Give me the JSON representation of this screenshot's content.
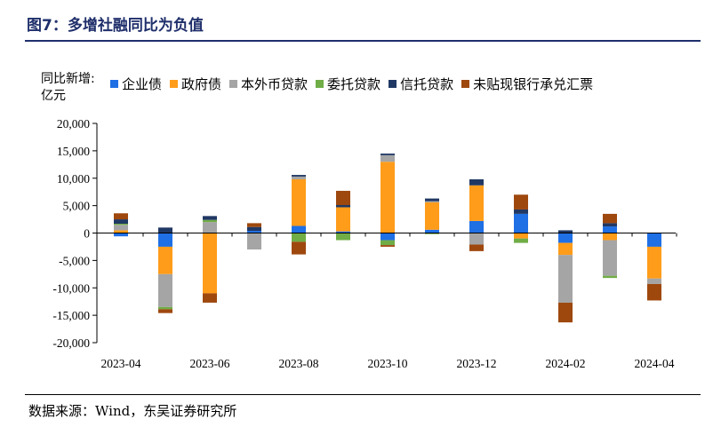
{
  "header": {
    "title": "图7：多增社融同比为负值",
    "source": "数据来源：Wind，东吴证券研究所"
  },
  "chart_data": {
    "type": "bar",
    "stacked": true,
    "ylabel": "同比新增:亿元",
    "ylim": [
      -20000,
      20000
    ],
    "yticks": [
      20000,
      15000,
      10000,
      5000,
      0,
      -5000,
      -10000,
      -15000,
      -20000
    ],
    "ytick_labels": [
      "20,000",
      "15,000",
      "10,000",
      "5,000",
      "0",
      "-5,000",
      "-10,000",
      "-15,000",
      "-20,000"
    ],
    "categories": [
      "2023-04",
      "2023-05",
      "2023-06",
      "2023-07",
      "2023-08",
      "2023-09",
      "2023-10",
      "2023-11",
      "2023-12",
      "2024-01",
      "2024-02",
      "2024-03",
      "2024-04"
    ],
    "xtick_labels": [
      "2023-04",
      "2023-06",
      "2023-08",
      "2023-10",
      "2023-12",
      "2024-02",
      "2024-04"
    ],
    "grid": false,
    "legend_position": "top",
    "series": [
      {
        "name": "企业债",
        "color": "#1f6fe5",
        "values": [
          -600,
          -2500,
          0,
          400,
          1300,
          300,
          -1300,
          600,
          2200,
          3500,
          -1800,
          1200,
          -2500
        ]
      },
      {
        "name": "政府债",
        "color": "#ff9c1a",
        "values": [
          500,
          -5000,
          -11000,
          0,
          8500,
          4400,
          13000,
          5000,
          6500,
          -1000,
          -2200,
          -1300,
          -5800
        ]
      },
      {
        "name": "本外币贷款",
        "color": "#a5a5a5",
        "values": [
          1000,
          -6000,
          2000,
          -3000,
          500,
          0,
          1200,
          200,
          -2100,
          0,
          -8700,
          -6500,
          -1000
        ]
      },
      {
        "name": "委托贷款",
        "color": "#70ad47",
        "values": [
          200,
          -400,
          400,
          0,
          -1600,
          -1300,
          -900,
          -200,
          0,
          -800,
          0,
          -400,
          0
        ]
      },
      {
        "name": "信托贷款",
        "color": "#203864",
        "values": [
          800,
          1000,
          700,
          700,
          300,
          400,
          300,
          500,
          1100,
          800,
          500,
          600,
          0
        ]
      },
      {
        "name": "未贴现银行承兑汇票",
        "color": "#9e480e",
        "values": [
          1100,
          -700,
          -1700,
          700,
          -2300,
          2600,
          -300,
          0,
          -1200,
          2700,
          -3600,
          1700,
          -3000
        ]
      }
    ]
  }
}
